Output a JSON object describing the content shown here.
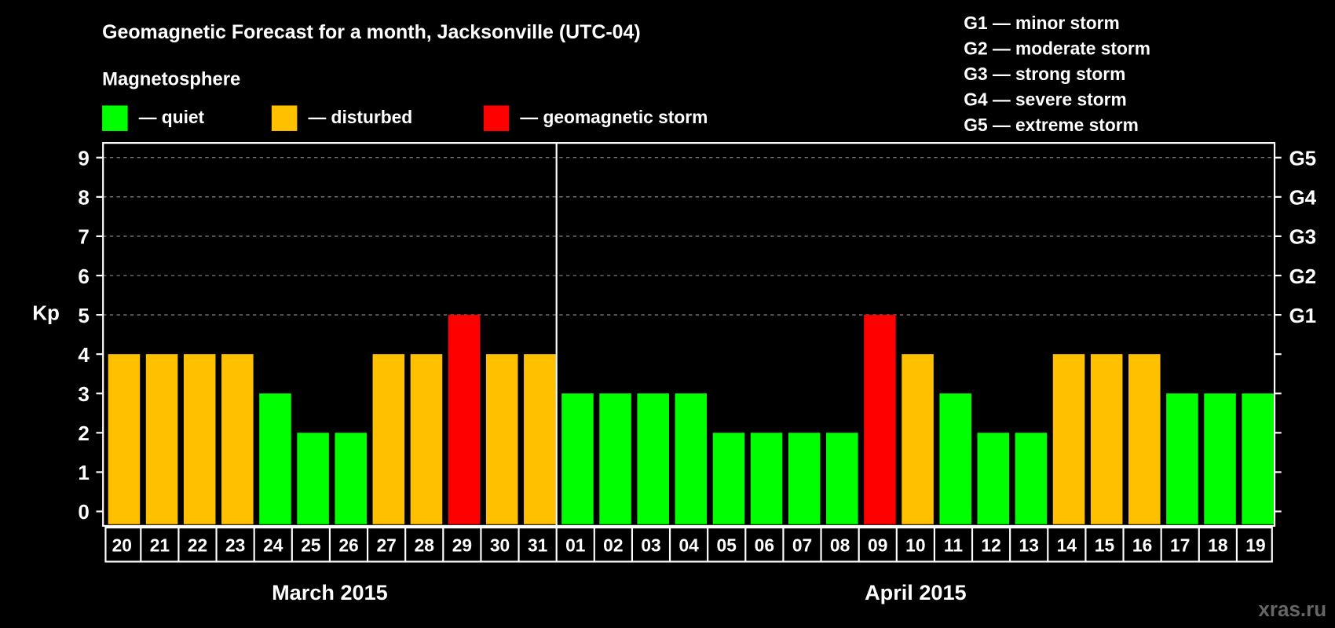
{
  "chart_data": {
    "type": "bar",
    "title": "Geomagnetic Forecast for a month, Jacksonville (UTC-04)",
    "ylabel": "Kp",
    "ylim": [
      0,
      9
    ],
    "yticks": [
      "0",
      "1",
      "2",
      "3",
      "4",
      "5",
      "6",
      "7",
      "8",
      "9"
    ],
    "right_ticks": [
      {
        "kp": 5,
        "label": "G1"
      },
      {
        "kp": 6,
        "label": "G2"
      },
      {
        "kp": 7,
        "label": "G3"
      },
      {
        "kp": 8,
        "label": "G4"
      },
      {
        "kp": 9,
        "label": "G5"
      }
    ],
    "grid": true,
    "categories": [
      "20",
      "21",
      "22",
      "23",
      "24",
      "25",
      "26",
      "27",
      "28",
      "29",
      "30",
      "31",
      "01",
      "02",
      "03",
      "04",
      "05",
      "06",
      "07",
      "08",
      "09",
      "10",
      "11",
      "12",
      "13",
      "14",
      "15",
      "16",
      "17",
      "18",
      "19"
    ],
    "values": [
      4,
      4,
      4,
      4,
      3,
      2,
      2,
      4,
      4,
      5,
      4,
      4,
      3,
      3,
      3,
      3,
      2,
      2,
      2,
      2,
      5,
      4,
      3,
      2,
      2,
      4,
      4,
      4,
      3,
      3,
      3
    ],
    "months": [
      {
        "label": "March 2015",
        "days": 12
      },
      {
        "label": "April 2015",
        "days": 19
      }
    ],
    "legend_title": "Magnetosphere",
    "legend": [
      {
        "label": "— quiet",
        "color": "#00ff00"
      },
      {
        "label": "— disturbed",
        "color": "#ffc000"
      },
      {
        "label": "— geomagnetic storm",
        "color": "#ff0000"
      }
    ],
    "storm_scale": [
      "G1 — minor storm",
      "G2 — moderate storm",
      "G3 — strong storm",
      "G4 — severe storm",
      "G5 — extreme storm"
    ],
    "watermark": "xras.ru"
  }
}
